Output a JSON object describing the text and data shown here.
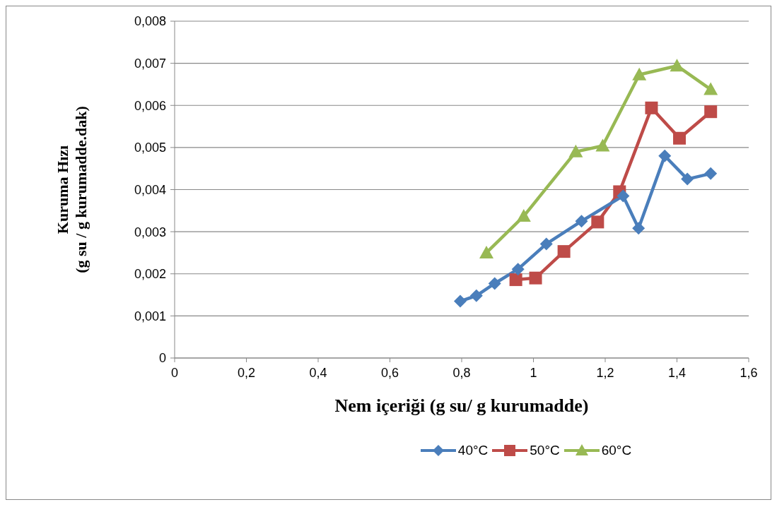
{
  "chart_data": {
    "type": "line",
    "xlabel": "Nem içeriği (g su/ g kurumadde)",
    "ylabel": "Kuruma Hızı\n(g su / g kurumadde.dak)",
    "xlim": [
      0,
      1.6
    ],
    "xticks": [
      0,
      {
        "value": 0.2,
        "label": "0,2"
      },
      {
        "value": 0.4,
        "label": "0,4"
      },
      {
        "value": 0.6,
        "label": "0,6"
      },
      {
        "value": 0.8,
        "label": "0,8"
      },
      1,
      {
        "value": 1.2,
        "label": "1,2"
      },
      {
        "value": 1.4,
        "label": "1,4"
      },
      {
        "value": 1.6,
        "label": "1,6"
      }
    ],
    "ylim": [
      0,
      0.008
    ],
    "yticks": [
      0,
      {
        "value": 0.001,
        "label": "0,001"
      },
      {
        "value": 0.002,
        "label": "0,002"
      },
      {
        "value": 0.003,
        "label": "0,003"
      },
      {
        "value": 0.004,
        "label": "0,004"
      },
      {
        "value": 0.005,
        "label": "0,005"
      },
      {
        "value": 0.006,
        "label": "0,006"
      },
      {
        "value": 0.007,
        "label": "0,007"
      },
      {
        "value": 0.008,
        "label": "0,008"
      }
    ],
    "grid": "y",
    "legend": "bottom",
    "line_style": "solid",
    "series": [
      {
        "name": "40°C",
        "color": "#4a7ebb",
        "marker": "diamond",
        "x": [
          0.796,
          0.841,
          0.892,
          0.957,
          1.036,
          1.134,
          1.25,
          1.293,
          1.366,
          1.429,
          1.494
        ],
        "values": [
          0.00135,
          0.00148,
          0.00177,
          0.00211,
          0.00271,
          0.00325,
          0.00385,
          0.00308,
          0.0048,
          0.00425,
          0.00438
        ]
      },
      {
        "name": "50°C",
        "color": "#be4b48",
        "marker": "square",
        "x": [
          0.951,
          1.006,
          1.085,
          1.179,
          1.24,
          1.329,
          1.407,
          1.494
        ],
        "values": [
          0.00186,
          0.0019,
          0.00253,
          0.00323,
          0.00395,
          0.00594,
          0.00522,
          0.00585
        ]
      },
      {
        "name": "60°C",
        "color": "#98b954",
        "marker": "triangle",
        "x": [
          0.869,
          0.973,
          1.118,
          1.193,
          1.295,
          1.4,
          1.494
        ],
        "values": [
          0.0025,
          0.00337,
          0.0049,
          0.00504,
          0.00673,
          0.00694,
          0.00638
        ]
      }
    ]
  }
}
